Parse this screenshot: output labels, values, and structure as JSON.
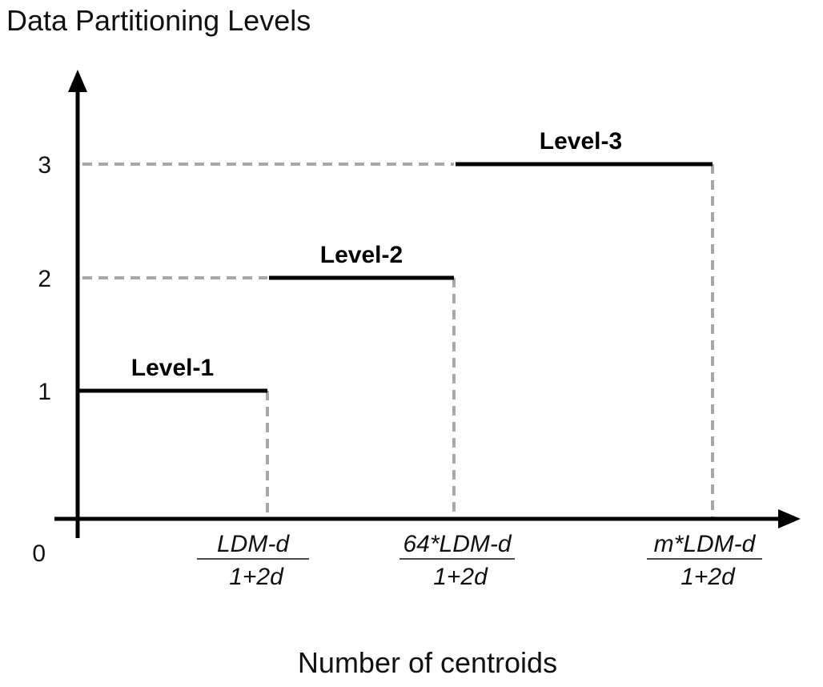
{
  "chart_data": {
    "type": "line",
    "title": "",
    "ylabel": "Data Partitioning Levels",
    "xlabel": "Number of centroids",
    "origin_label": "0",
    "y_ticks": [
      "1",
      "2",
      "3"
    ],
    "x_ticks": [
      {
        "numerator": "LDM-d",
        "denominator": "1+2d"
      },
      {
        "numerator": "64*LDM-d",
        "denominator": "1+2d"
      },
      {
        "numerator": "m*LDM-d",
        "denominator": "1+2d"
      }
    ],
    "steps": [
      {
        "label": "Level-1",
        "level": 1,
        "x_start": "0",
        "x_end": "LDM-d/(1+2d)"
      },
      {
        "label": "Level-2",
        "level": 2,
        "x_start": "LDM-d/(1+2d)",
        "x_end": "64*LDM-d/(1+2d)"
      },
      {
        "label": "Level-3",
        "level": 3,
        "x_start": "64*LDM-d/(1+2d)",
        "x_end": "m*LDM-d/(1+2d)"
      }
    ],
    "colors": {
      "step": "#000000",
      "guide": "#a8a8a8",
      "axis": "#000000"
    }
  }
}
